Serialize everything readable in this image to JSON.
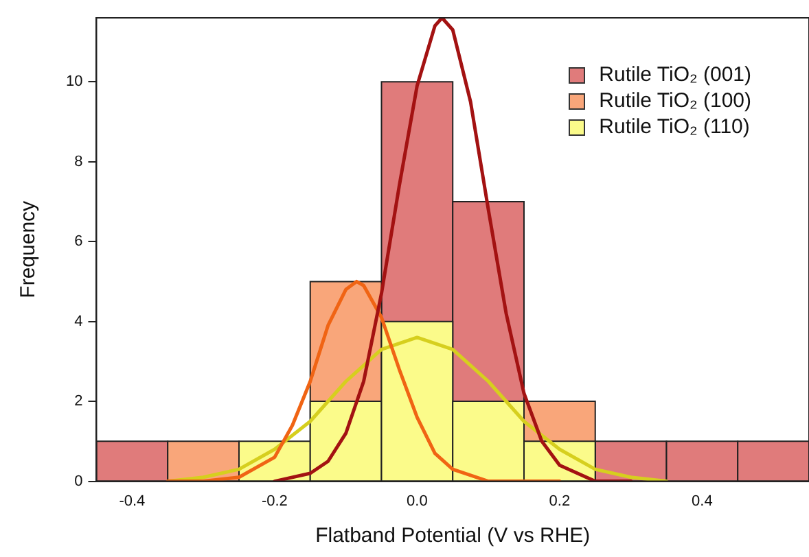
{
  "chart_data": {
    "type": "histogram",
    "xlabel": "Flatband Potential (V vs RHE)",
    "ylabel": "Frequency",
    "bins": [
      -0.45,
      -0.35,
      -0.25,
      -0.15,
      -0.05,
      0.05,
      0.15,
      0.25,
      0.35,
      0.45,
      0.55
    ],
    "series": [
      {
        "name": "Rutile TiO₂ (001)",
        "color": "#e07b7b",
        "values": [
          1,
          null,
          null,
          null,
          10,
          7,
          null,
          1,
          1,
          1
        ]
      },
      {
        "name": "Rutile TiO₂ (100)",
        "color": "#f9a67a",
        "values": [
          0,
          1,
          null,
          5,
          null,
          null,
          2,
          0,
          0,
          0
        ]
      },
      {
        "name": "Rutile TiO₂ (110)",
        "color": "#fbfb8a",
        "values": [
          0,
          0,
          1,
          2,
          4,
          2,
          1,
          0,
          0,
          0
        ]
      },
      {
        "type": "line",
        "color": "#a31212",
        "x": [
          -0.2,
          -0.15,
          -0.125,
          -0.1,
          -0.075,
          -0.05,
          -0.025,
          0,
          0.025,
          0.035,
          0.05,
          0.075,
          0.1,
          0.125,
          0.15,
          0.175,
          0.2,
          0.25,
          0.3
        ],
        "values": [
          0,
          0.2,
          0.5,
          1.2,
          2.5,
          4.7,
          7.4,
          9.9,
          11.4,
          11.6,
          11.3,
          9.5,
          6.8,
          4.2,
          2.2,
          1,
          0.4,
          0,
          0
        ]
      },
      {
        "type": "line",
        "color": "#f06414",
        "x": [
          -0.35,
          -0.3,
          -0.25,
          -0.2,
          -0.175,
          -0.15,
          -0.125,
          -0.1,
          -0.085,
          -0.075,
          -0.05,
          -0.025,
          0,
          0.025,
          0.05,
          0.1,
          0.2
        ],
        "values": [
          0,
          0,
          0.1,
          0.6,
          1.4,
          2.5,
          3.9,
          4.8,
          5,
          4.9,
          4.1,
          2.8,
          1.6,
          0.7,
          0.3,
          0,
          0
        ]
      },
      {
        "type": "line",
        "color": "#d6cf1e",
        "x": [
          -0.35,
          -0.3,
          -0.25,
          -0.2,
          -0.15,
          -0.1,
          -0.05,
          0,
          0.05,
          0.1,
          0.15,
          0.2,
          0.25,
          0.3,
          0.35
        ],
        "values": [
          0,
          0.1,
          0.3,
          0.8,
          1.5,
          2.5,
          3.3,
          3.6,
          3.3,
          2.5,
          1.5,
          0.8,
          0.3,
          0.1,
          0
        ]
      }
    ],
    "xlim": [
      -0.45,
      0.55
    ],
    "xticks": [
      -0.4,
      -0.2,
      {
        "value": 0,
        "label": "0.0"
      },
      0.2,
      0.4
    ],
    "ylim": [
      0,
      11.6
    ],
    "yticks": [
      0,
      2,
      4,
      6,
      8,
      10
    ],
    "grid": false,
    "legend": "top right"
  }
}
